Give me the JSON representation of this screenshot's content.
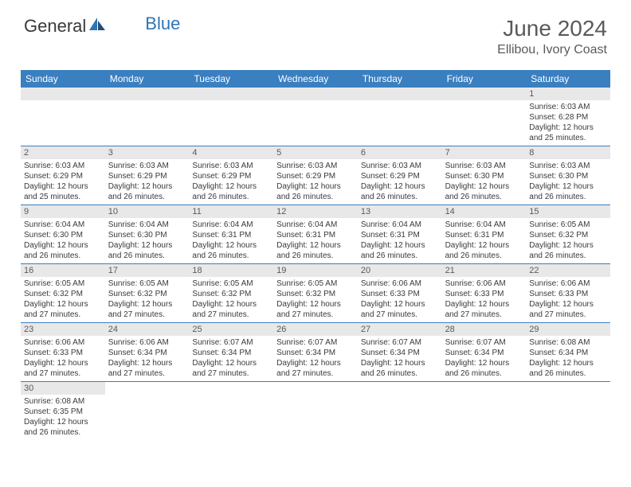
{
  "logo": {
    "general": "General",
    "blue": "Blue"
  },
  "title": "June 2024",
  "location": "Ellibou, Ivory Coast",
  "colors": {
    "header_bar": "#3a7fc0",
    "daynum_bg": "#e8e8e8",
    "row_border": "#3a7fc0",
    "text": "#3a3a3a",
    "title_text": "#5a5a5a",
    "logo_blue": "#2e75b6"
  },
  "weekdays": [
    "Sunday",
    "Monday",
    "Tuesday",
    "Wednesday",
    "Thursday",
    "Friday",
    "Saturday"
  ],
  "weeks": [
    [
      {
        "empty": true
      },
      {
        "empty": true
      },
      {
        "empty": true
      },
      {
        "empty": true
      },
      {
        "empty": true
      },
      {
        "empty": true
      },
      {
        "n": "1",
        "sunrise": "Sunrise: 6:03 AM",
        "sunset": "Sunset: 6:28 PM",
        "d1": "Daylight: 12 hours",
        "d2": "and 25 minutes."
      }
    ],
    [
      {
        "n": "2",
        "sunrise": "Sunrise: 6:03 AM",
        "sunset": "Sunset: 6:29 PM",
        "d1": "Daylight: 12 hours",
        "d2": "and 25 minutes."
      },
      {
        "n": "3",
        "sunrise": "Sunrise: 6:03 AM",
        "sunset": "Sunset: 6:29 PM",
        "d1": "Daylight: 12 hours",
        "d2": "and 26 minutes."
      },
      {
        "n": "4",
        "sunrise": "Sunrise: 6:03 AM",
        "sunset": "Sunset: 6:29 PM",
        "d1": "Daylight: 12 hours",
        "d2": "and 26 minutes."
      },
      {
        "n": "5",
        "sunrise": "Sunrise: 6:03 AM",
        "sunset": "Sunset: 6:29 PM",
        "d1": "Daylight: 12 hours",
        "d2": "and 26 minutes."
      },
      {
        "n": "6",
        "sunrise": "Sunrise: 6:03 AM",
        "sunset": "Sunset: 6:29 PM",
        "d1": "Daylight: 12 hours",
        "d2": "and 26 minutes."
      },
      {
        "n": "7",
        "sunrise": "Sunrise: 6:03 AM",
        "sunset": "Sunset: 6:30 PM",
        "d1": "Daylight: 12 hours",
        "d2": "and 26 minutes."
      },
      {
        "n": "8",
        "sunrise": "Sunrise: 6:03 AM",
        "sunset": "Sunset: 6:30 PM",
        "d1": "Daylight: 12 hours",
        "d2": "and 26 minutes."
      }
    ],
    [
      {
        "n": "9",
        "sunrise": "Sunrise: 6:04 AM",
        "sunset": "Sunset: 6:30 PM",
        "d1": "Daylight: 12 hours",
        "d2": "and 26 minutes."
      },
      {
        "n": "10",
        "sunrise": "Sunrise: 6:04 AM",
        "sunset": "Sunset: 6:30 PM",
        "d1": "Daylight: 12 hours",
        "d2": "and 26 minutes."
      },
      {
        "n": "11",
        "sunrise": "Sunrise: 6:04 AM",
        "sunset": "Sunset: 6:31 PM",
        "d1": "Daylight: 12 hours",
        "d2": "and 26 minutes."
      },
      {
        "n": "12",
        "sunrise": "Sunrise: 6:04 AM",
        "sunset": "Sunset: 6:31 PM",
        "d1": "Daylight: 12 hours",
        "d2": "and 26 minutes."
      },
      {
        "n": "13",
        "sunrise": "Sunrise: 6:04 AM",
        "sunset": "Sunset: 6:31 PM",
        "d1": "Daylight: 12 hours",
        "d2": "and 26 minutes."
      },
      {
        "n": "14",
        "sunrise": "Sunrise: 6:04 AM",
        "sunset": "Sunset: 6:31 PM",
        "d1": "Daylight: 12 hours",
        "d2": "and 26 minutes."
      },
      {
        "n": "15",
        "sunrise": "Sunrise: 6:05 AM",
        "sunset": "Sunset: 6:32 PM",
        "d1": "Daylight: 12 hours",
        "d2": "and 26 minutes."
      }
    ],
    [
      {
        "n": "16",
        "sunrise": "Sunrise: 6:05 AM",
        "sunset": "Sunset: 6:32 PM",
        "d1": "Daylight: 12 hours",
        "d2": "and 27 minutes."
      },
      {
        "n": "17",
        "sunrise": "Sunrise: 6:05 AM",
        "sunset": "Sunset: 6:32 PM",
        "d1": "Daylight: 12 hours",
        "d2": "and 27 minutes."
      },
      {
        "n": "18",
        "sunrise": "Sunrise: 6:05 AM",
        "sunset": "Sunset: 6:32 PM",
        "d1": "Daylight: 12 hours",
        "d2": "and 27 minutes."
      },
      {
        "n": "19",
        "sunrise": "Sunrise: 6:05 AM",
        "sunset": "Sunset: 6:32 PM",
        "d1": "Daylight: 12 hours",
        "d2": "and 27 minutes."
      },
      {
        "n": "20",
        "sunrise": "Sunrise: 6:06 AM",
        "sunset": "Sunset: 6:33 PM",
        "d1": "Daylight: 12 hours",
        "d2": "and 27 minutes."
      },
      {
        "n": "21",
        "sunrise": "Sunrise: 6:06 AM",
        "sunset": "Sunset: 6:33 PM",
        "d1": "Daylight: 12 hours",
        "d2": "and 27 minutes."
      },
      {
        "n": "22",
        "sunrise": "Sunrise: 6:06 AM",
        "sunset": "Sunset: 6:33 PM",
        "d1": "Daylight: 12 hours",
        "d2": "and 27 minutes."
      }
    ],
    [
      {
        "n": "23",
        "sunrise": "Sunrise: 6:06 AM",
        "sunset": "Sunset: 6:33 PM",
        "d1": "Daylight: 12 hours",
        "d2": "and 27 minutes."
      },
      {
        "n": "24",
        "sunrise": "Sunrise: 6:06 AM",
        "sunset": "Sunset: 6:34 PM",
        "d1": "Daylight: 12 hours",
        "d2": "and 27 minutes."
      },
      {
        "n": "25",
        "sunrise": "Sunrise: 6:07 AM",
        "sunset": "Sunset: 6:34 PM",
        "d1": "Daylight: 12 hours",
        "d2": "and 27 minutes."
      },
      {
        "n": "26",
        "sunrise": "Sunrise: 6:07 AM",
        "sunset": "Sunset: 6:34 PM",
        "d1": "Daylight: 12 hours",
        "d2": "and 27 minutes."
      },
      {
        "n": "27",
        "sunrise": "Sunrise: 6:07 AM",
        "sunset": "Sunset: 6:34 PM",
        "d1": "Daylight: 12 hours",
        "d2": "and 26 minutes."
      },
      {
        "n": "28",
        "sunrise": "Sunrise: 6:07 AM",
        "sunset": "Sunset: 6:34 PM",
        "d1": "Daylight: 12 hours",
        "d2": "and 26 minutes."
      },
      {
        "n": "29",
        "sunrise": "Sunrise: 6:08 AM",
        "sunset": "Sunset: 6:34 PM",
        "d1": "Daylight: 12 hours",
        "d2": "and 26 minutes."
      }
    ],
    [
      {
        "n": "30",
        "sunrise": "Sunrise: 6:08 AM",
        "sunset": "Sunset: 6:35 PM",
        "d1": "Daylight: 12 hours",
        "d2": "and 26 minutes."
      },
      {
        "empty": true
      },
      {
        "empty": true
      },
      {
        "empty": true
      },
      {
        "empty": true
      },
      {
        "empty": true
      },
      {
        "empty": true
      }
    ]
  ]
}
